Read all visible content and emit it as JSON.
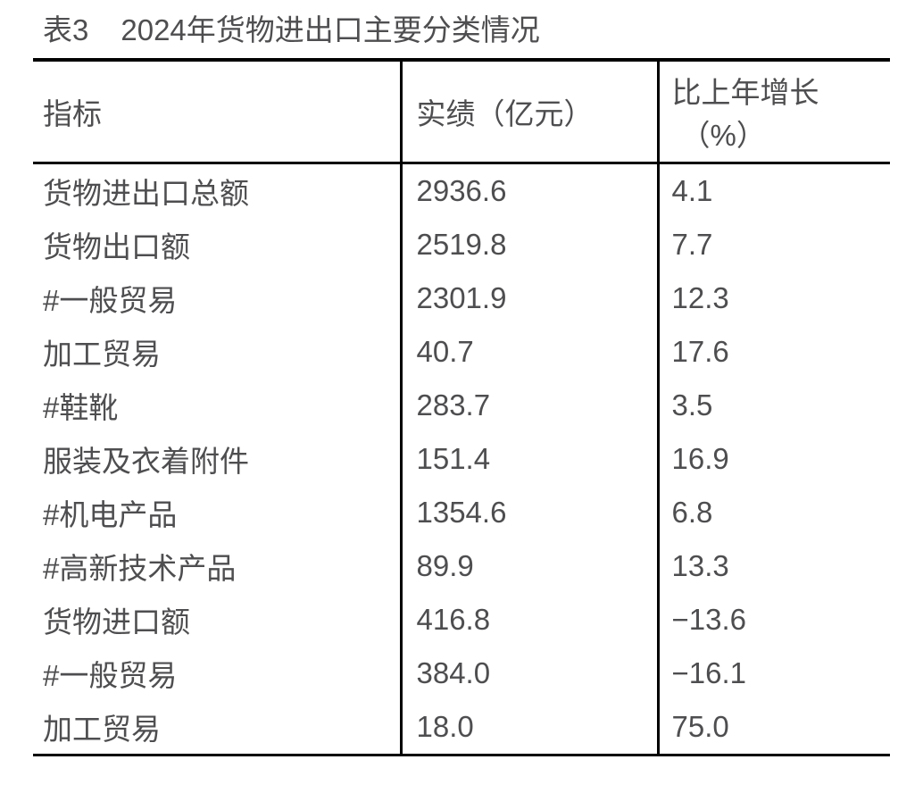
{
  "title": {
    "prefix": "表3",
    "text": "2024年货物进出口主要分类情况"
  },
  "table": {
    "headers": {
      "indicator": "指标",
      "value": "实绩（亿元）",
      "growth_line1": "比上年增长",
      "growth_line2": "（%）"
    },
    "rows": [
      {
        "indicator": "货物进出口总额",
        "value": "2936.6",
        "growth": "4.1"
      },
      {
        "indicator": "货物出口额",
        "value": "2519.8",
        "growth": "7.7"
      },
      {
        "indicator": "#一般贸易",
        "value": "2301.9",
        "growth": "12.3"
      },
      {
        "indicator": "加工贸易",
        "value": "40.7",
        "growth": "17.6"
      },
      {
        "indicator": "#鞋靴",
        "value": "283.7",
        "growth": "3.5"
      },
      {
        "indicator": "服装及衣着附件",
        "value": "151.4",
        "growth": "16.9"
      },
      {
        "indicator": "#机电产品",
        "value": "1354.6",
        "growth": "6.8"
      },
      {
        "indicator": "#高新技术产品",
        "value": "89.9",
        "growth": "13.3"
      },
      {
        "indicator": "货物进口额",
        "value": "416.8",
        "growth": "−13.6"
      },
      {
        "indicator": "#一般贸易",
        "value": "384.0",
        "growth": "−16.1"
      },
      {
        "indicator": "加工贸易",
        "value": "18.0",
        "growth": "75.0"
      }
    ]
  },
  "colors": {
    "text": "#4e4e50",
    "border": "#000000",
    "background": "#ffffff"
  }
}
